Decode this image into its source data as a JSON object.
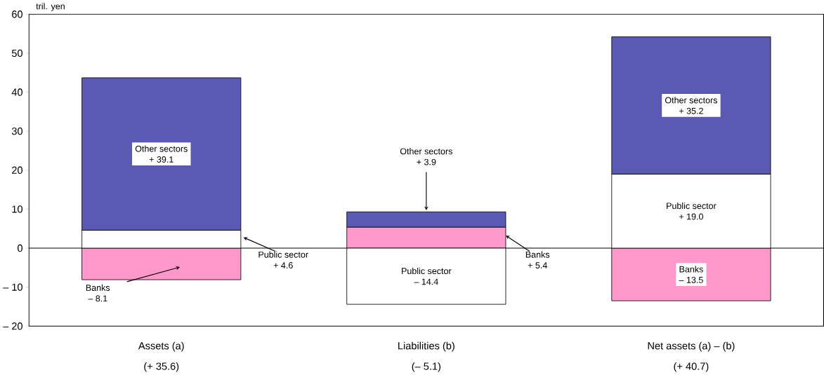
{
  "chart_data": {
    "type": "bar",
    "stacked": true,
    "ylabel": "tril. yen",
    "categories": [
      "Assets (a)",
      "Liabilities (b)",
      "Net assets (a) – (b)"
    ],
    "annotations": [
      "(+ 35.6)",
      "(– 5.1)",
      "(+ 40.7)"
    ],
    "series": [
      {
        "name": "Banks",
        "color": "#ff99cc",
        "values": [
          -8.1,
          5.4,
          -13.5
        ],
        "value_labels": [
          "– 8.1",
          "+ 5.4",
          "– 13.5"
        ]
      },
      {
        "name": "Public sector",
        "color": "#ffffff",
        "values": [
          4.6,
          -14.4,
          19.0
        ],
        "value_labels": [
          "+ 4.6",
          "– 14.4",
          "+ 19.0"
        ]
      },
      {
        "name": "Other sectors",
        "color": "#5a5ab4",
        "values": [
          39.1,
          3.9,
          35.2
        ],
        "value_labels": [
          "+ 39.1",
          "+ 3.9",
          "+ 35.2"
        ]
      }
    ],
    "ylim": [
      -20,
      60
    ],
    "yticks": [
      {
        "value": -20,
        "label": "– 20"
      },
      {
        "value": -10,
        "label": "– 10"
      },
      0,
      10,
      20,
      30,
      40,
      50,
      60
    ],
    "ref_lines": [
      {
        "axis": "y",
        "value": 0
      }
    ],
    "grid": false
  }
}
